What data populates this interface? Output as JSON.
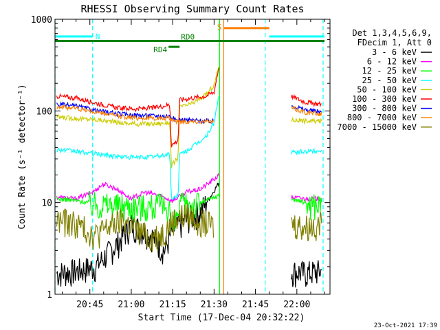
{
  "chart_data": {
    "type": "line",
    "title": "RHESSI Observing Summary Count Rates",
    "xlabel": "Start Time (17-Dec-04 20:32:22)",
    "ylabel": "Count Rate (s⁻¹ detector⁻¹)",
    "y_scale": "log",
    "ylim": [
      1,
      1000
    ],
    "xlim": [
      "20:32:22",
      "22:12:00"
    ],
    "x_ticks": [
      "20:45",
      "21:00",
      "21:15",
      "21:30",
      "21:45",
      "22:00"
    ],
    "y_ticks": [
      "1",
      "10",
      "100",
      "1000"
    ],
    "legend_header": [
      "Det 1,3,4,5,6,9,",
      "FDecim 1, Att 0"
    ],
    "legend_position": "right",
    "series": [
      {
        "name": "3 - 6 keV",
        "color": "#000000",
        "points": [
          [
            "20:33",
            1.7
          ],
          [
            "20:40",
            1.8
          ],
          [
            "20:47",
            2.0
          ],
          [
            "20:55",
            3.6
          ],
          [
            "21:00",
            5.8
          ],
          [
            "21:07",
            4.5
          ],
          [
            "21:12",
            3.0
          ],
          [
            "21:15",
            5.0
          ],
          [
            "21:20",
            6.5
          ],
          [
            "21:25",
            8.0
          ],
          [
            "21:29",
            12
          ],
          [
            "21:32",
            17
          ],
          [
            "21:58",
            1.8
          ],
          [
            "22:03",
            1.7
          ],
          [
            "22:09",
            1.8
          ]
        ]
      },
      {
        "name": "6 - 12 keV",
        "color": "#ff00ff",
        "points": [
          [
            "20:33",
            11.5
          ],
          [
            "20:40",
            11
          ],
          [
            "20:46",
            13
          ],
          [
            "20:50",
            16
          ],
          [
            "20:55",
            14
          ],
          [
            "21:00",
            11
          ],
          [
            "21:05",
            13
          ],
          [
            "21:10",
            12
          ],
          [
            "21:15",
            10.5
          ],
          [
            "21:20",
            13
          ],
          [
            "21:25",
            14
          ],
          [
            "21:29",
            17
          ],
          [
            "21:32",
            20
          ],
          [
            "21:58",
            11.5
          ],
          [
            "22:03",
            11
          ],
          [
            "22:09",
            11
          ]
        ]
      },
      {
        "name": "12 - 25 keV",
        "color": "#00ff00",
        "points": [
          [
            "20:33",
            11
          ],
          [
            "20:40",
            10.5
          ],
          [
            "20:47",
            9.8
          ],
          [
            "20:55",
            9.5
          ],
          [
            "21:02",
            9.3
          ],
          [
            "21:10",
            9.3
          ],
          [
            "21:14",
            9.3
          ],
          [
            "21:14.5",
            4.5
          ],
          [
            "21:16",
            6.5
          ],
          [
            "21:18",
            9.5
          ],
          [
            "21:25",
            10
          ],
          [
            "21:29",
            11
          ],
          [
            "21:32",
            12
          ],
          [
            "21:58",
            11
          ],
          [
            "22:03",
            10
          ],
          [
            "22:09",
            9.5
          ]
        ]
      },
      {
        "name": "25 - 50 keV",
        "color": "#00ffff",
        "points": [
          [
            "20:33",
            38
          ],
          [
            "20:40",
            36
          ],
          [
            "20:47",
            34
          ],
          [
            "20:55",
            32
          ],
          [
            "21:02",
            31
          ],
          [
            "21:10",
            32
          ],
          [
            "21:14",
            34
          ],
          [
            "21:14.5",
            11
          ],
          [
            "21:17",
            12
          ],
          [
            "21:17.5",
            33
          ],
          [
            "21:22",
            40
          ],
          [
            "21:27",
            52
          ],
          [
            "21:30",
            75
          ],
          [
            "21:32",
            160
          ],
          [
            "21:58",
            35
          ],
          [
            "22:03",
            36
          ],
          [
            "22:09",
            37
          ]
        ]
      },
      {
        "name": "50 - 100 keV",
        "color": "#cccc00",
        "points": [
          [
            "20:33",
            86
          ],
          [
            "20:40",
            83
          ],
          [
            "20:48",
            80
          ],
          [
            "20:55",
            75
          ],
          [
            "21:02",
            72
          ],
          [
            "21:10",
            73
          ],
          [
            "21:14",
            75
          ],
          [
            "21:14.5",
            25
          ],
          [
            "21:17",
            31
          ],
          [
            "21:17.5",
            110
          ],
          [
            "21:22",
            120
          ],
          [
            "21:27",
            150
          ],
          [
            "21:30",
            190
          ],
          [
            "21:32",
            330
          ],
          [
            "21:58",
            80
          ],
          [
            "22:03",
            78
          ],
          [
            "22:09",
            77
          ]
        ]
      },
      {
        "name": "100 - 300 keV",
        "color": "#ff0000",
        "points": [
          [
            "20:33",
            145
          ],
          [
            "20:40",
            138
          ],
          [
            "20:48",
            120
          ],
          [
            "20:55",
            108
          ],
          [
            "21:02",
            105
          ],
          [
            "21:10",
            110
          ],
          [
            "21:14",
            118
          ],
          [
            "21:14.5",
            42
          ],
          [
            "21:17",
            48
          ],
          [
            "21:17.5",
            132
          ],
          [
            "21:22",
            138
          ],
          [
            "21:27",
            145
          ],
          [
            "21:30",
            160
          ],
          [
            "21:32",
            330
          ],
          [
            "21:58",
            145
          ],
          [
            "22:03",
            125
          ],
          [
            "22:09",
            118
          ]
        ]
      },
      {
        "name": "300 - 800 keV",
        "color": "#0000ff",
        "points": [
          [
            "20:33",
            118
          ],
          [
            "20:40",
            113
          ],
          [
            "20:48",
            100
          ],
          [
            "20:55",
            93
          ],
          [
            "21:02",
            90
          ],
          [
            "21:10",
            88
          ],
          [
            "21:14",
            88
          ],
          [
            "21:16",
            80
          ],
          [
            "21:20",
            80
          ],
          [
            "21:25",
            78
          ],
          [
            "21:30",
            77
          ],
          [
            "21:58",
            115
          ],
          [
            "22:03",
            103
          ],
          [
            "22:09",
            98
          ]
        ]
      },
      {
        "name": "800 - 7000 keV",
        "color": "#ff7f00",
        "points": [
          [
            "20:33",
            112
          ],
          [
            "20:40",
            107
          ],
          [
            "20:48",
            96
          ],
          [
            "20:55",
            88
          ],
          [
            "21:02",
            84
          ],
          [
            "21:10",
            83
          ],
          [
            "21:14",
            83
          ],
          [
            "21:16",
            78
          ],
          [
            "21:20",
            77
          ],
          [
            "21:25",
            77
          ],
          [
            "21:30",
            76
          ],
          [
            "21:58",
            108
          ],
          [
            "22:03",
            97
          ],
          [
            "22:09",
            92
          ]
        ]
      },
      {
        "name": "7000 - 15000 keV",
        "color": "#808000",
        "points": [
          [
            "20:33",
            6.5
          ],
          [
            "20:40",
            6.0
          ],
          [
            "20:47",
            4.5
          ],
          [
            "20:52",
            5.5
          ],
          [
            "20:57",
            6.5
          ],
          [
            "21:02",
            5.0
          ],
          [
            "21:07",
            4.2
          ],
          [
            "21:12",
            4.8
          ],
          [
            "21:15",
            6.5
          ],
          [
            "21:20",
            7.5
          ],
          [
            "21:25",
            6.5
          ],
          [
            "21:30",
            5.5
          ],
          [
            "21:58",
            6.0
          ],
          [
            "22:03",
            5.5
          ],
          [
            "22:09",
            6.0
          ]
        ]
      }
    ],
    "annotations": [
      {
        "label": "N",
        "color": "#00ffff",
        "level": 650,
        "from": "20:32:22",
        "to": "20:46:00"
      },
      {
        "label": "",
        "color": "#00ffff",
        "level": 650,
        "from": "21:50:00",
        "to": "22:10:00"
      },
      {
        "label": "S",
        "color": "#ff7f00",
        "level": 800,
        "from": "21:33:30",
        "to": "21:50:00"
      },
      {
        "label": "RD0",
        "color": "#008000",
        "level": 580,
        "from": "20:32:22",
        "to": "22:10:00"
      },
      {
        "label": "RD4",
        "color": "#008000",
        "level": 500,
        "from": "21:13:30",
        "to": "21:17:30"
      }
    ],
    "vertical_markers": [
      {
        "time": "20:32:22",
        "color": "#00ffff",
        "style": "dashed"
      },
      {
        "time": "20:46:00",
        "color": "#00ffff",
        "style": "dashed"
      },
      {
        "time": "21:32:00",
        "color": "#00ff00",
        "style": "solid"
      },
      {
        "time": "21:33:30",
        "color": "#ff7f00",
        "style": "solid"
      },
      {
        "time": "21:48:30",
        "color": "#00ffff",
        "style": "dashed"
      },
      {
        "time": "22:09:30",
        "color": "#00ffff",
        "style": "dashed"
      }
    ],
    "timestamp": "23-Oct-2021 17:39"
  }
}
